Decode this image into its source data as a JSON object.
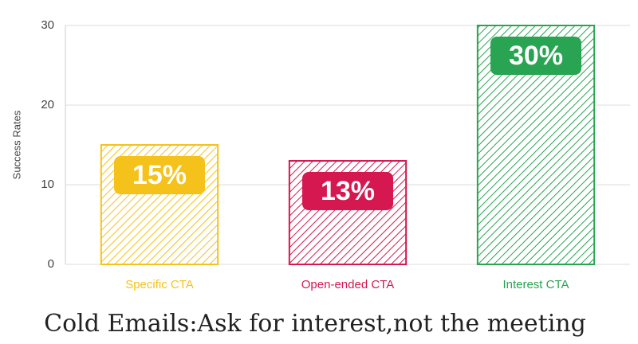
{
  "chart_data": {
    "type": "bar",
    "title": "Cold Emails:Ask for interest,not the meeting",
    "y_label": "Success Rates",
    "categories": [
      "Specific CTA",
      "Open-ended CTA",
      "Interest CTA"
    ],
    "values": [
      15,
      13,
      30
    ],
    "value_labels": [
      "15%",
      "13%",
      "30%"
    ],
    "colors": [
      "#f5c21b",
      "#d5184f",
      "#28a452"
    ],
    "ylim": [
      0,
      30
    ],
    "yticks": [
      0,
      10,
      20,
      30
    ],
    "grid": true
  }
}
